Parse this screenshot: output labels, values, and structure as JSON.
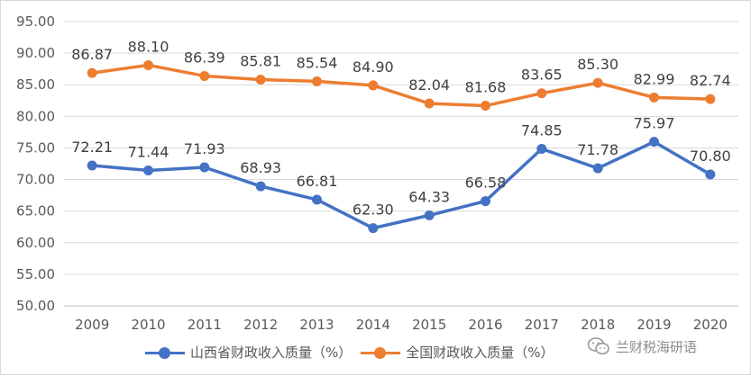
{
  "chart_data": {
    "type": "line",
    "title": "",
    "xlabel": "",
    "ylabel": "",
    "categories": [
      "2009",
      "2010",
      "2011",
      "2012",
      "2013",
      "2014",
      "2015",
      "2016",
      "2017",
      "2018",
      "2019",
      "2020"
    ],
    "ylim": [
      50,
      95
    ],
    "ytick_step": 5,
    "ytick_labels": [
      "50.00",
      "55.00",
      "60.00",
      "65.00",
      "70.00",
      "75.00",
      "80.00",
      "85.00",
      "90.00",
      "95.00"
    ],
    "grid": "horizontal",
    "legend_position": "bottom",
    "series": [
      {
        "name": "山西省财政收入质量（%）",
        "color": "#4472c4",
        "values": [
          72.21,
          71.44,
          71.93,
          68.93,
          66.81,
          62.3,
          64.33,
          66.58,
          74.85,
          71.78,
          75.97,
          70.8
        ],
        "labels": [
          "72.21",
          "71.44",
          "71.93",
          "68.93",
          "66.81",
          "62.30",
          "64.33",
          "66.58",
          "74.85",
          "71.78",
          "75.97",
          "70.80"
        ]
      },
      {
        "name": "全国财政收入质量（%）",
        "color": "#ed7d31",
        "values": [
          86.87,
          88.1,
          86.39,
          85.81,
          85.54,
          84.9,
          82.04,
          81.68,
          83.65,
          85.3,
          82.99,
          82.74
        ],
        "labels": [
          "86.87",
          "88.10",
          "86.39",
          "85.81",
          "85.54",
          "84.90",
          "82.04",
          "81.68",
          "83.65",
          "85.30",
          "82.99",
          "82.74"
        ]
      }
    ]
  },
  "watermark": {
    "text": "兰财税海研语",
    "icon": "wechat-icon"
  }
}
